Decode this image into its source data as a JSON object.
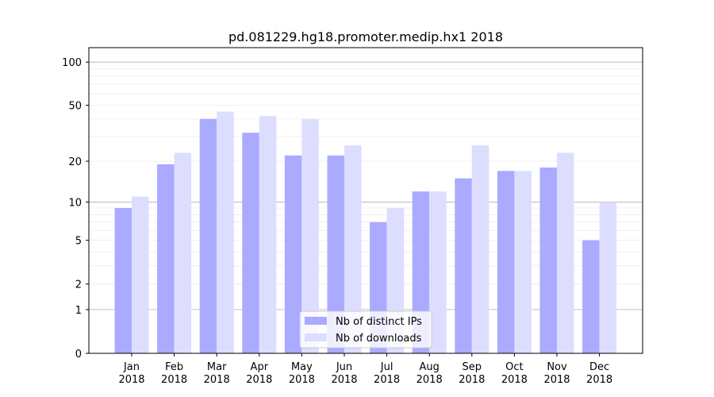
{
  "chart_data": {
    "type": "bar",
    "title": "pd.081229.hg18.promoter.medip.hx1 2018",
    "xlabel": "",
    "ylabel": "",
    "yscale": "symlog",
    "ylim": [
      0,
      120
    ],
    "yticks": [
      0,
      1,
      2,
      5,
      10,
      20,
      50,
      100
    ],
    "grid": true,
    "legend_position": "bottom-center",
    "categories": [
      "Jan\n2018",
      "Feb\n2018",
      "Mar\n2018",
      "Apr\n2018",
      "May\n2018",
      "Jun\n2018",
      "Jul\n2018",
      "Aug\n2018",
      "Sep\n2018",
      "Oct\n2018",
      "Nov\n2018",
      "Dec\n2018"
    ],
    "series": [
      {
        "name": "Nb of distinct IPs",
        "color": "#aaaaff",
        "values": [
          9,
          19,
          40,
          32,
          22,
          22,
          7,
          12,
          15,
          17,
          18,
          5
        ]
      },
      {
        "name": "Nb of downloads",
        "color": "#ddddff",
        "values": [
          11,
          23,
          45,
          42,
          40,
          26,
          9,
          12,
          26,
          17,
          23,
          10
        ]
      }
    ]
  }
}
